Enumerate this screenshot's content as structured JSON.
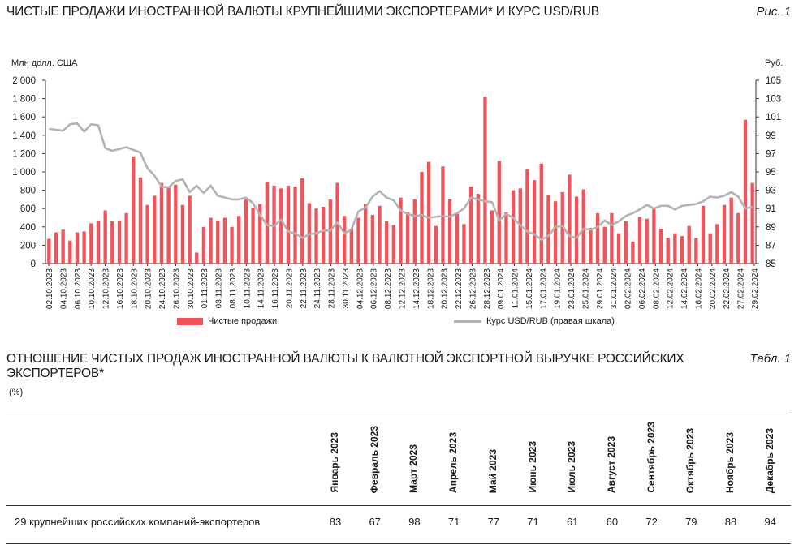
{
  "figure": {
    "title": "ЧИСТЫЕ ПРОДАЖИ ИНОСТРАННОЙ ВАЛЮТЫ КРУПНЕЙШИМИ ЭКСПОРТЕРАМИ* И КУРС USD/RUB",
    "label": "Рис. 1",
    "left_unit": "Млн долл. США",
    "right_unit": "Руб."
  },
  "chart_data": {
    "type": "bar",
    "title": "ЧИСТЫЕ ПРОДАЖИ ИНОСТРАННОЙ ВАЛЮТЫ КРУПНЕЙШИМИ ЭКСПОРТЕРАМИ* И КУРС USD/RUB",
    "ylim": [
      0,
      2000
    ],
    "yticks": [
      "0",
      "200",
      "400",
      "600",
      "800",
      "1 000",
      "1 200",
      "1 400",
      "1 600",
      "1 800",
      "2 000"
    ],
    "y2lim": [
      85,
      105
    ],
    "y2ticks": [
      "85",
      "87",
      "89",
      "91",
      "93",
      "95",
      "97",
      "99",
      "101",
      "103",
      "105"
    ],
    "x_tick_labels": [
      "02.10.2023",
      "04.10.2023",
      "06.10.2023",
      "10.10.2023",
      "12.10.2023",
      "16.10.2023",
      "18.10.2023",
      "20.10.2023",
      "24.10.2023",
      "26.10.2023",
      "30.10.2023",
      "01.11.2023",
      "03.11.2023",
      "08.11.2023",
      "10.11.2023",
      "14.11.2023",
      "16.11.2023",
      "20.11.2023",
      "22.11.2023",
      "24.11.2023",
      "28.11.2023",
      "30.11.2023",
      "04.12.2023",
      "06.12.2023",
      "08.12.2023",
      "12.12.2023",
      "14.12.2023",
      "18.12.2023",
      "20.12.2023",
      "22.12.2023",
      "26.12.2023",
      "28.12.2023",
      "09.01.2024",
      "11.01.2024",
      "15.01.2024",
      "17.01.2024",
      "19.01.2024",
      "23.01.2024",
      "25.01.2024",
      "29.01.2024",
      "31.01.2024",
      "02.02.2024",
      "06.02.2024",
      "08.02.2024",
      "12.02.2024",
      "14.02.2024",
      "16.02.2024",
      "20.02.2024",
      "22.02.2024",
      "27.02.2024",
      "29.02.2024"
    ],
    "series": [
      {
        "name": "Чистые продажи",
        "type": "bar",
        "color": "#f0545a",
        "values": [
          270,
          340,
          370,
          250,
          340,
          350,
          440,
          470,
          580,
          460,
          470,
          550,
          1170,
          940,
          640,
          740,
          880,
          830,
          860,
          640,
          740,
          120,
          400,
          500,
          470,
          500,
          400,
          520,
          700,
          610,
          650,
          890,
          850,
          820,
          850,
          840,
          930,
          660,
          600,
          620,
          700,
          880,
          520,
          380,
          500,
          650,
          530,
          630,
          460,
          420,
          720,
          560,
          700,
          1000,
          1110,
          410,
          1060,
          700,
          550,
          430,
          840,
          760,
          1820,
          580,
          1120,
          560,
          800,
          820,
          1030,
          910,
          1090,
          750,
          680,
          780,
          970,
          730,
          810,
          390,
          550,
          400,
          550,
          330,
          460,
          240,
          510,
          490,
          600,
          380,
          280,
          330,
          300,
          410,
          280,
          630,
          330,
          430,
          640,
          720,
          550,
          1570,
          880
        ]
      },
      {
        "name": "Курс USD/RUB (правая шкала)",
        "type": "line",
        "axis": "right",
        "color": "#b3b3b3",
        "values": [
          99.7,
          99.6,
          99.5,
          100.2,
          100.3,
          99.4,
          100.2,
          100.1,
          97.6,
          97.3,
          97.5,
          97.7,
          97.4,
          97.1,
          95.4,
          94.6,
          93.4,
          93.3,
          94.0,
          94.2,
          92.8,
          93.5,
          92.7,
          93.5,
          92.4,
          92.2,
          92.0,
          92.0,
          92.2,
          91.6,
          90.3,
          89.2,
          89.1,
          89.8,
          88.5,
          88.3,
          87.8,
          88.2,
          88.3,
          88.6,
          88.6,
          89.5,
          88.3,
          88.7,
          90.7,
          91.1,
          92.3,
          92.9,
          92.2,
          91.9,
          90.8,
          90.4,
          90.2,
          90.3,
          90.0,
          90.1,
          90.2,
          90.1,
          90.5,
          91.0,
          92.2,
          92.0,
          91.8,
          91.7,
          89.7,
          90.4,
          90.0,
          89.2,
          88.5,
          88.2,
          87.6,
          88.0,
          89.0,
          89.1,
          88.0,
          87.8,
          88.8,
          88.7,
          89.0,
          89.7,
          89.2,
          89.6,
          90.2,
          90.5,
          90.9,
          91.4,
          91.0,
          91.3,
          91.3,
          90.9,
          91.3,
          91.4,
          91.5,
          91.8,
          92.3,
          92.2,
          92.4,
          92.8,
          92.3,
          91.0,
          91.2
        ]
      }
    ]
  },
  "legend": {
    "bars_label": "Чистые продажи",
    "line_label": "Курс USD/RUB (правая шкала)"
  },
  "table": {
    "title": "ОТНОШЕНИЕ ЧИСТЫХ ПРОДАЖ ИНОСТРАННОЙ ВАЛЮТЫ К ВАЛЮТНОЙ ЭКСПОРТНОЙ ВЫРУЧКЕ РОССИЙСКИХ ЭКСПОРТЕРОВ*",
    "label": "Табл. 1",
    "unit": "(%)",
    "columns": [
      "Январь 2023",
      "Февраль 2023",
      "Март 2023",
      "Апрель 2023",
      "Май 2023",
      "Июнь 2023",
      "Июль 2023",
      "Август 2023",
      "Сентябрь 2023",
      "Октябрь 2023",
      "Ноябрь 2023",
      "Декабрь 2023"
    ],
    "row_label": "29 крупнейших российских компаний-экспортеров",
    "values": [
      "83",
      "67",
      "98",
      "71",
      "77",
      "71",
      "61",
      "60",
      "72",
      "79",
      "88",
      "94"
    ]
  }
}
